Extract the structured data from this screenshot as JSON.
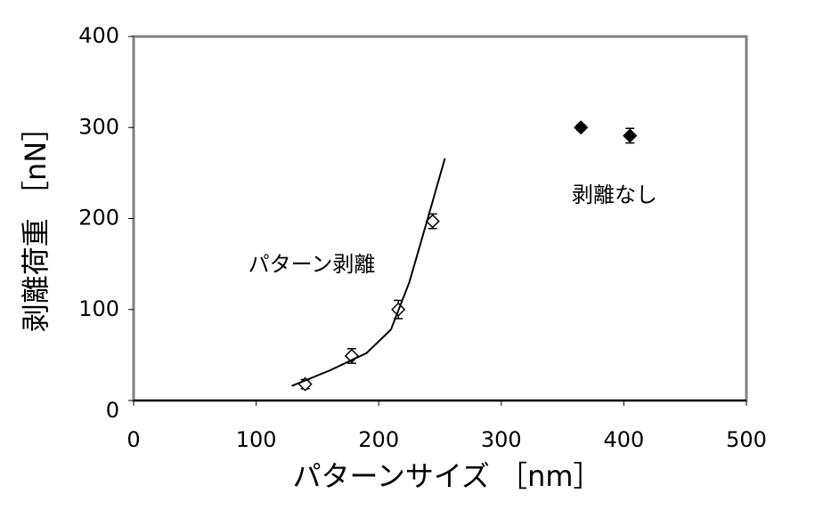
{
  "chart_data": {
    "type": "scatter",
    "xlabel": "パターンサイズ ［nm］",
    "ylabel": "剥離荷重 ［nN］",
    "annotations": [
      "パターン剥離",
      "剥離なし"
    ],
    "xlim": [
      0,
      500
    ],
    "xticks": [
      0,
      100,
      200,
      300,
      400,
      500
    ],
    "ylim": [
      0,
      400
    ],
    "yticks": [
      0,
      100,
      200,
      300,
      400
    ],
    "series": [
      {
        "marker": "open-diamond",
        "color": "#000000",
        "x": [
          140,
          178,
          216,
          244
        ],
        "values": [
          18,
          49,
          100,
          197
        ],
        "errors": [
          5,
          8,
          10,
          8
        ]
      },
      {
        "marker": "filled-diamond",
        "color": "#000000",
        "x": [
          365,
          405
        ],
        "values": [
          300,
          291
        ],
        "errors": [
          3,
          8
        ]
      },
      {
        "marker": "line",
        "color": "#000000",
        "x": [
          129,
          160,
          190,
          210,
          225,
          240,
          254
        ],
        "values": [
          16,
          33,
          52,
          78,
          130,
          200,
          266
        ]
      }
    ]
  }
}
